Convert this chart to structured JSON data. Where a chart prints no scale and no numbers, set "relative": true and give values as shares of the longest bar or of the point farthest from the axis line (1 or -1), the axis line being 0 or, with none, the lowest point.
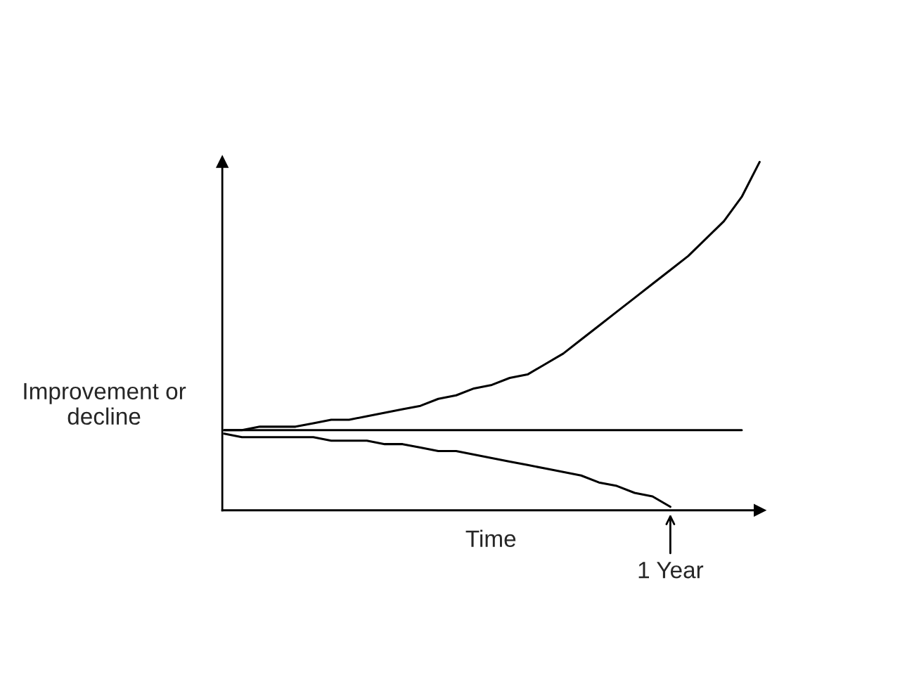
{
  "chart_data": {
    "type": "line",
    "relative": true,
    "xlabel": "Time",
    "ylabel": "Improvement or decline",
    "categories": [
      null,
      null,
      null,
      null,
      null,
      null,
      null,
      null,
      null,
      null,
      null,
      null,
      null,
      null,
      null,
      null,
      null,
      null,
      null,
      null,
      null,
      null,
      null,
      null,
      null,
      null,
      null,
      null,
      null,
      null,
      null
    ],
    "series": [
      {
        "color": "#000000",
        "values": [
          0.23,
          0.23,
          0.24,
          0.24,
          0.24,
          0.25,
          0.26,
          0.26,
          0.27,
          0.28,
          0.29,
          0.3,
          0.32,
          0.33,
          0.35,
          0.36,
          0.38,
          0.39,
          0.42,
          0.45,
          0.49,
          0.53,
          0.57,
          0.61,
          0.65,
          0.69,
          0.73,
          0.78,
          0.83,
          0.9,
          1.0
        ]
      },
      {
        "color": "#000000",
        "values": [
          0.23,
          0.23,
          0.23,
          0.23,
          0.23,
          0.23,
          0.23,
          0.23,
          0.23,
          0.23,
          0.23,
          0.23,
          0.23,
          0.23,
          0.23,
          0.23,
          0.23,
          0.23,
          0.23,
          0.23,
          0.23,
          0.23,
          0.23,
          0.23,
          0.23,
          0.23,
          0.23,
          0.23,
          0.23,
          0.23,
          null
        ]
      },
      {
        "color": "#000000",
        "values": [
          0.22,
          0.21,
          0.21,
          0.21,
          0.21,
          0.21,
          0.2,
          0.2,
          0.2,
          0.19,
          0.19,
          0.18,
          0.17,
          0.17,
          0.16,
          0.15,
          0.14,
          0.13,
          0.12,
          0.11,
          0.1,
          0.08,
          0.07,
          0.05,
          0.04,
          0.01,
          null,
          null,
          null,
          null,
          null
        ]
      }
    ],
    "annotations": [
      "1 Year"
    ],
    "legend": false,
    "marker": "none",
    "line_style": "solid"
  }
}
